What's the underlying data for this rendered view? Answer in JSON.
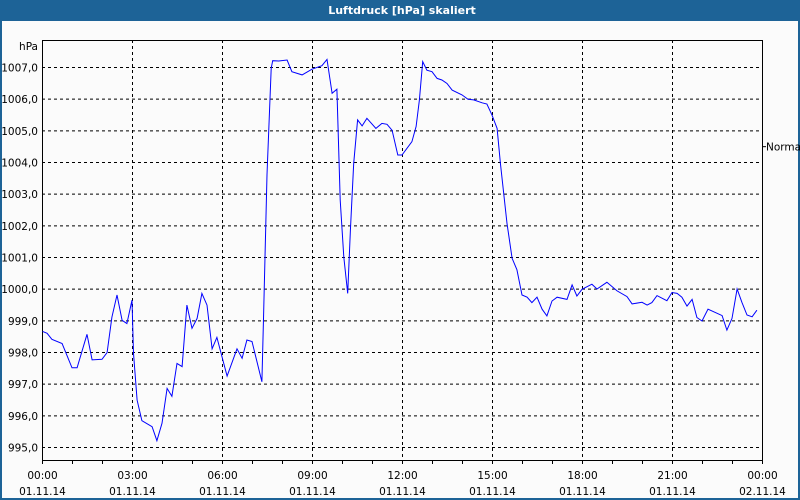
{
  "window": {
    "title": "Luftdruck [hPa] skaliert"
  },
  "chart_data": {
    "type": "line",
    "title": "Luftdruck [hPa] skaliert",
    "ylabel": "hPa",
    "xlabel": "",
    "ylim": [
      995.0,
      1007.0
    ],
    "xlim_hours": [
      0,
      24
    ],
    "grid": true,
    "y_ticks": [
      "995,0",
      "996,0",
      "997,0",
      "998,0",
      "999,0",
      "1000,0",
      "1001,0",
      "1002,0",
      "1003,0",
      "1004,0",
      "1005,0",
      "1006,0",
      "1007,0"
    ],
    "x_ticks": [
      {
        "time": "00:00",
        "date": "01.11.14"
      },
      {
        "time": "03:00",
        "date": "01.11.14"
      },
      {
        "time": "06:00",
        "date": "01.11.14"
      },
      {
        "time": "09:00",
        "date": "01.11.14"
      },
      {
        "time": "12:00",
        "date": "01.11.14"
      },
      {
        "time": "15:00",
        "date": "01.11.14"
      },
      {
        "time": "18:00",
        "date": "01.11.14"
      },
      {
        "time": "21:00",
        "date": "01.11.14"
      },
      {
        "time": "00:00",
        "date": "02.11.14"
      }
    ],
    "reference": {
      "label": "Normal",
      "value": 1004.5
    },
    "series_color": "#0000ff",
    "series": [
      {
        "x_hours": [
          0.02,
          0.17,
          0.33,
          0.67,
          1.0,
          1.17,
          1.5,
          1.67,
          2.0,
          2.17,
          2.33,
          2.5,
          2.67,
          2.83,
          3.0,
          3.05,
          3.17,
          3.33,
          3.67,
          3.83,
          4.0,
          4.17,
          4.33,
          4.5,
          4.67,
          4.83,
          5.0,
          5.17,
          5.33,
          5.5,
          5.67,
          5.83,
          6.17,
          6.5,
          6.67,
          6.83,
          7.0,
          7.33,
          7.39,
          7.5,
          7.64,
          7.69,
          7.89,
          8.17,
          8.33,
          8.67,
          9.0,
          9.33,
          9.5,
          9.67,
          9.83,
          9.94,
          10.06,
          10.19,
          10.28,
          10.39,
          10.52,
          10.67,
          10.83,
          11.13,
          11.33,
          11.5,
          11.67,
          11.86,
          12.0,
          12.33,
          12.47,
          12.58,
          12.69,
          12.83,
          13.0,
          13.17,
          13.33,
          13.5,
          13.67,
          14.0,
          14.2,
          14.39,
          14.67,
          14.83,
          15.0,
          15.17,
          15.28,
          15.5,
          15.67,
          15.83,
          16.0,
          16.17,
          16.33,
          16.5,
          16.67,
          16.83,
          17.0,
          17.17,
          17.5,
          17.67,
          17.83,
          18.0,
          18.33,
          18.5,
          18.83,
          19.17,
          19.5,
          19.67,
          20.0,
          20.17,
          20.33,
          20.5,
          20.83,
          21.0,
          21.17,
          21.33,
          21.5,
          21.67,
          21.83,
          22.0,
          22.2,
          22.67,
          22.83,
          23.0,
          23.17,
          23.33,
          23.5,
          23.67,
          23.83
        ],
        "values": [
          998.65,
          998.59,
          998.4,
          998.27,
          997.5,
          997.5,
          998.56,
          997.75,
          997.77,
          997.98,
          999.1,
          999.8,
          999.0,
          998.9,
          999.64,
          997.96,
          996.48,
          995.83,
          995.64,
          995.2,
          995.75,
          996.85,
          996.6,
          997.64,
          997.54,
          999.48,
          998.75,
          999.06,
          999.85,
          999.48,
          998.1,
          998.46,
          997.24,
          998.1,
          997.8,
          998.38,
          998.33,
          997.06,
          999.3,
          1003.6,
          1006.96,
          1007.2,
          1007.19,
          1007.22,
          1006.85,
          1006.75,
          1006.93,
          1007.04,
          1007.24,
          1006.17,
          1006.3,
          1002.8,
          1001.0,
          999.85,
          1001.85,
          1003.96,
          1005.33,
          1005.14,
          1005.38,
          1005.06,
          1005.22,
          1005.19,
          1005.0,
          1004.22,
          1004.22,
          1004.64,
          1005.12,
          1005.96,
          1007.17,
          1006.9,
          1006.85,
          1006.64,
          1006.59,
          1006.48,
          1006.27,
          1006.12,
          1005.98,
          1005.96,
          1005.87,
          1005.83,
          1005.48,
          1005.06,
          1003.96,
          1002.06,
          1000.96,
          1000.6,
          999.8,
          999.73,
          999.56,
          999.73,
          999.35,
          999.14,
          999.61,
          999.73,
          999.66,
          1000.12,
          999.77,
          999.98,
          1000.14,
          999.99,
          1000.2,
          999.93,
          999.75,
          999.52,
          999.57,
          999.48,
          999.56,
          999.78,
          999.62,
          999.88,
          999.85,
          999.73,
          999.45,
          999.66,
          999.09,
          998.98,
          999.35,
          999.15,
          998.69,
          999.06,
          999.99,
          999.57,
          999.17,
          999.11,
          999.32
        ]
      }
    ]
  }
}
